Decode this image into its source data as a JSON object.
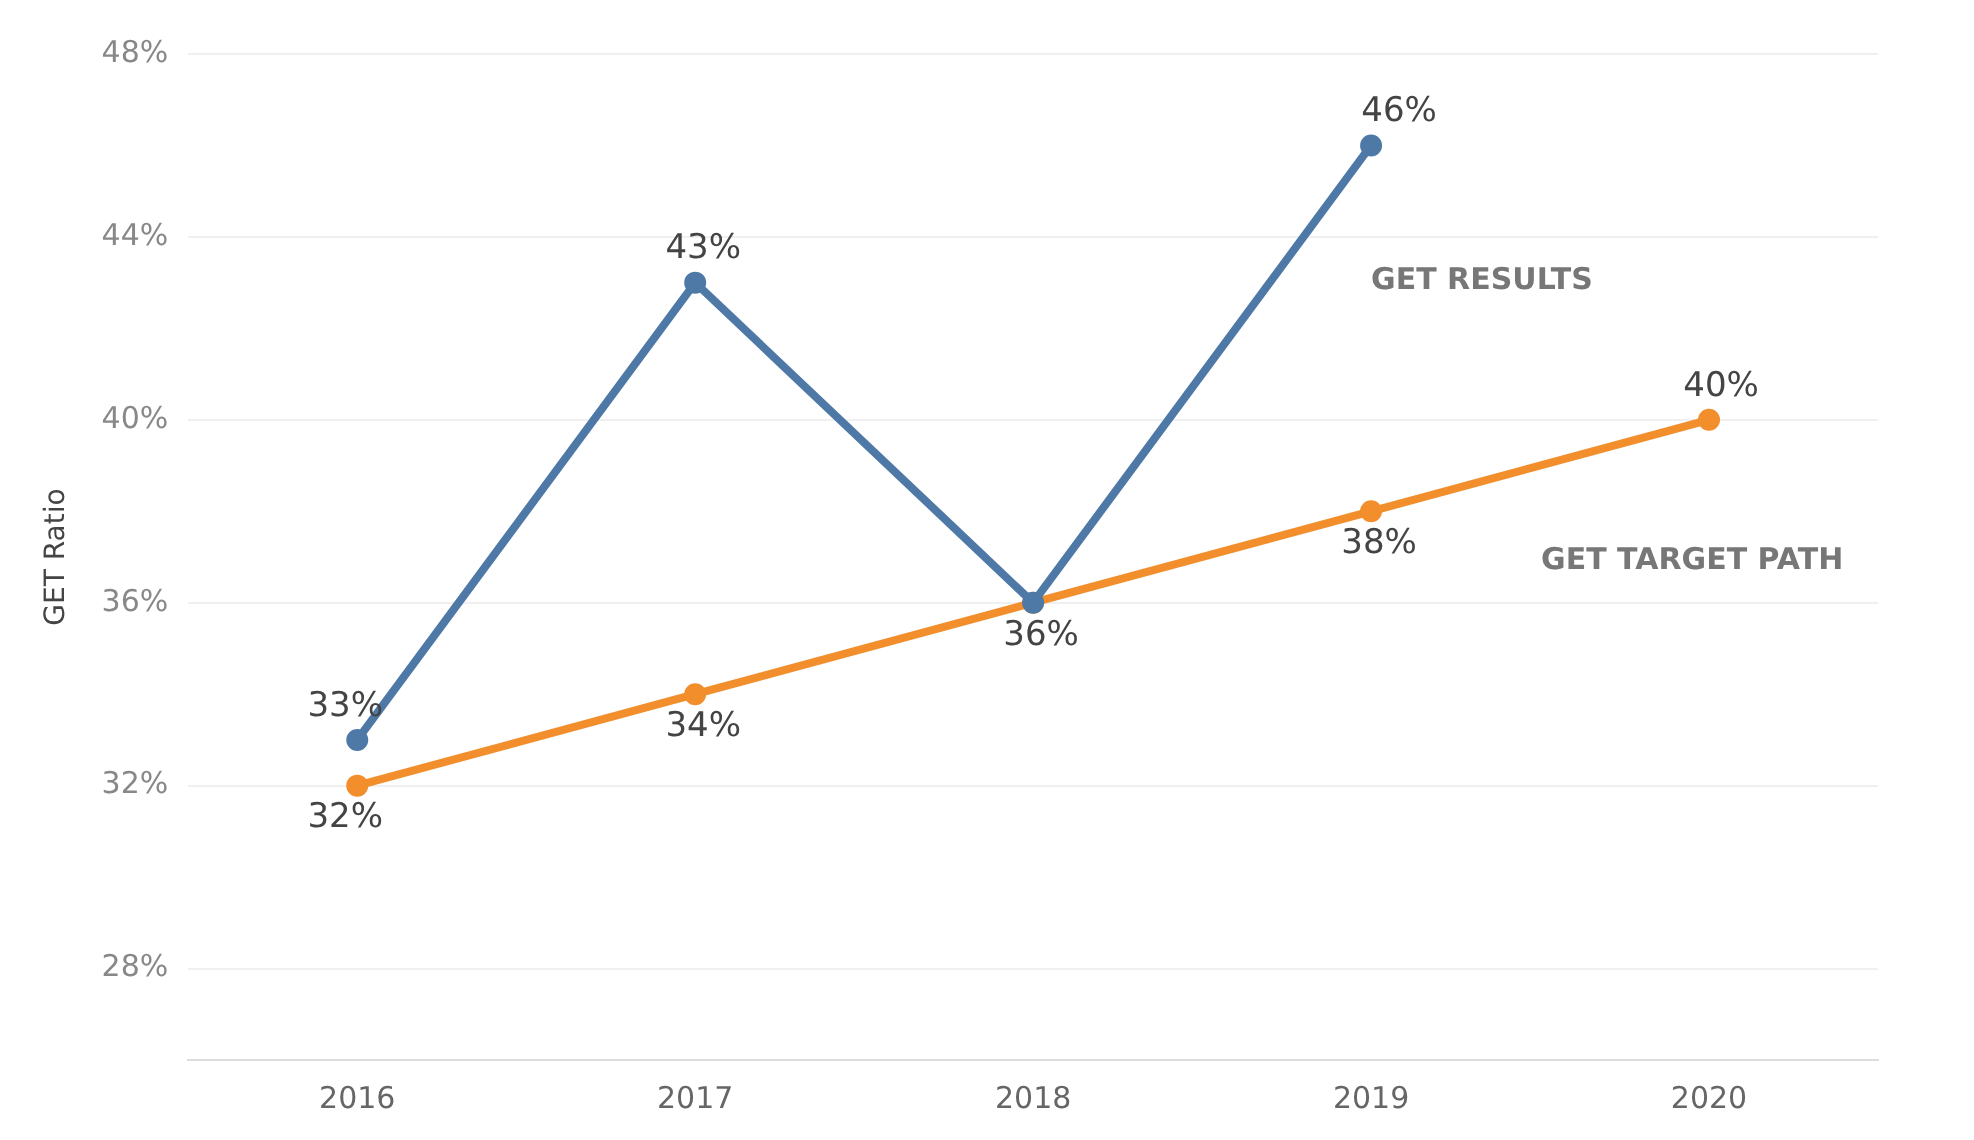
{
  "chart_data": {
    "type": "line",
    "ylabel": "GET Ratio",
    "categories": [
      "2016",
      "2017",
      "2018",
      "2019",
      "2020"
    ],
    "series": [
      {
        "name": "GET RESULTS",
        "color": "#4e79a7",
        "values": [
          33,
          43,
          36,
          46,
          null
        ],
        "value_labels": [
          "33%",
          "43%",
          null,
          "46%",
          null
        ]
      },
      {
        "name": "GET TARGET PATH",
        "color": "#f28e2b",
        "values": [
          32,
          34,
          36,
          38,
          40
        ],
        "value_labels": [
          "32%",
          "34%",
          "36%",
          "38%",
          "40%"
        ]
      }
    ],
    "ylim": [
      26,
      48
    ],
    "yticks": [
      {
        "value": 28,
        "label": "28%"
      },
      {
        "value": 32,
        "label": "32%"
      },
      {
        "value": 36,
        "label": "36%"
      },
      {
        "value": 40,
        "label": "40%"
      },
      {
        "value": 44,
        "label": "44%"
      },
      {
        "value": 48,
        "label": "48%"
      }
    ],
    "grid": "y",
    "legend": false,
    "marker": "circle",
    "line_style": "solid"
  }
}
